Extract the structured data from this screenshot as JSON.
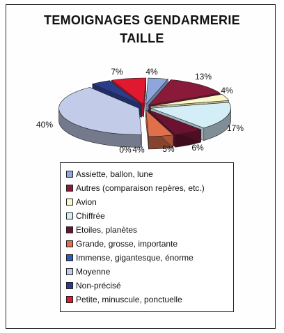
{
  "chart_data": {
    "type": "pie",
    "title": "TEMOIGNAGES GENDARMERIE",
    "subtitle": "TAILLE",
    "categories": [
      "Assiette, ballon, lune",
      "Autres (comparaison repères, etc.)",
      "Avion",
      "Chiffrée",
      "Etoiles, planètes",
      "Grande, grosse, importante",
      "Immense, gigantesque, énorme",
      "Moyenne",
      "Non-précisé",
      "Petite, minuscule, ponctuelle"
    ],
    "values": [
      4,
      13,
      4,
      17,
      6,
      5,
      0,
      40,
      4,
      7
    ],
    "labels": [
      "4%",
      "13%",
      "4%",
      "17%",
      "6%",
      "5%",
      "0%",
      "40%",
      "4%",
      "7%"
    ],
    "colors": [
      "#8fa6dc",
      "#8a1a3a",
      "#fbf8c8",
      "#d4eef8",
      "#6a1230",
      "#e0704c",
      "#2e5cb8",
      "#c2cce8",
      "#2c3c8c",
      "#e01830"
    ],
    "legend_position": "bottom"
  }
}
